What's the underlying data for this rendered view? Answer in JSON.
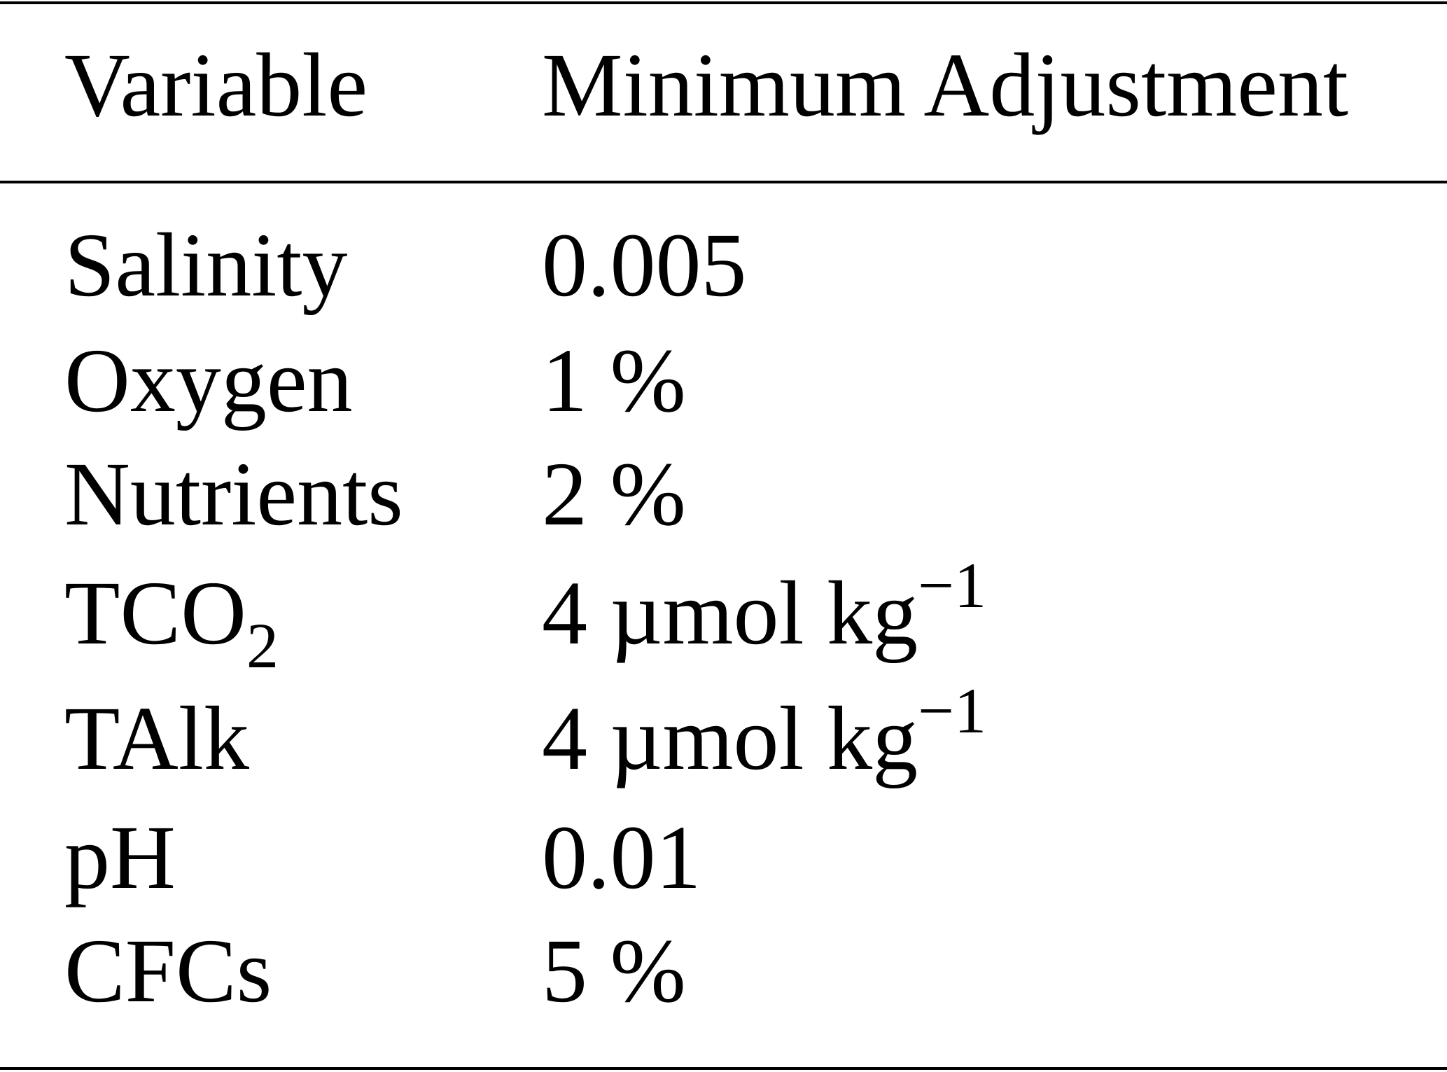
{
  "table": {
    "header": [
      "Variable",
      "Minimum Adjustment"
    ],
    "rows": [
      {
        "variable": "Salinity",
        "adjustment": "0.005"
      },
      {
        "variable": "Oxygen",
        "adjustment": "1 %"
      },
      {
        "variable": "Nutrients",
        "adjustment": "2 %"
      },
      {
        "variable": "TCO",
        "variable_sub": "2",
        "adjustment": "4 µmol kg",
        "adjustment_sup": "−1"
      },
      {
        "variable": "TAlk",
        "adjustment": "4 µmol kg",
        "adjustment_sup": "−1"
      },
      {
        "variable": "pH",
        "adjustment": "0.01"
      },
      {
        "variable": "CFCs",
        "adjustment": "5 %"
      }
    ]
  }
}
